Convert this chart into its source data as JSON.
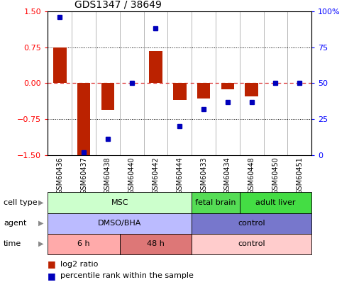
{
  "title": "GDS1347 / 38649",
  "samples": [
    "GSM60436",
    "GSM60437",
    "GSM60438",
    "GSM60440",
    "GSM60442",
    "GSM60444",
    "GSM60433",
    "GSM60434",
    "GSM60448",
    "GSM60450",
    "GSM60451"
  ],
  "log2_ratio": [
    0.75,
    -1.5,
    -0.55,
    0.0,
    0.68,
    -0.35,
    -0.32,
    -0.12,
    -0.28,
    0.0,
    0.0
  ],
  "percentile_rank": [
    96,
    2,
    11,
    50,
    88,
    20,
    32,
    37,
    37,
    50,
    50
  ],
  "ylim": [
    -1.5,
    1.5
  ],
  "yticks": [
    -1.5,
    -0.75,
    0,
    0.75,
    1.5
  ],
  "y2ticks": [
    0,
    25,
    50,
    75,
    100
  ],
  "hline_dotted": [
    -0.75,
    0.75
  ],
  "bar_color": "#bb2200",
  "dot_color": "#0000bb",
  "cell_spans": [
    [
      0,
      6,
      "MSC",
      "#ccffcc"
    ],
    [
      6,
      8,
      "fetal brain",
      "#55dd55"
    ],
    [
      8,
      11,
      "adult liver",
      "#44dd44"
    ]
  ],
  "agent_spans": [
    [
      0,
      6,
      "DMSO/BHA",
      "#bbbbff"
    ],
    [
      6,
      11,
      "control",
      "#7777cc"
    ]
  ],
  "time_spans": [
    [
      0,
      3,
      "6 h",
      "#ffaaaa"
    ],
    [
      3,
      6,
      "48 h",
      "#dd7777"
    ],
    [
      6,
      11,
      "control",
      "#ffcccc"
    ]
  ],
  "row_labels": [
    "cell type",
    "agent",
    "time"
  ],
  "legend_red": "log2 ratio",
  "legend_blue": "percentile rank within the sample"
}
